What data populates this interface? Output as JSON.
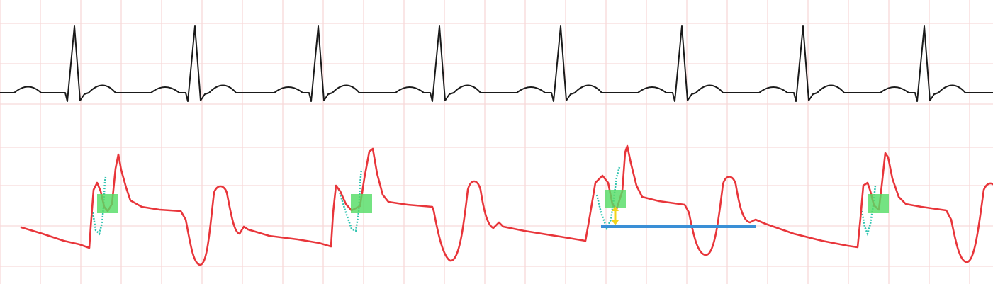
{
  "colors": {
    "background": "#ffffff",
    "grid": "#f7d9d9",
    "ecg": "#1a1a1a",
    "pressure": "#e8353a",
    "dotted_overlay": "#2fc4b0",
    "highlight": "#55dd66",
    "marker_arrow": "#f2d41c",
    "baseline_bar": "#3a8fd6"
  },
  "icons": {
    "marker": "double-headed-vertical-arrow"
  }
}
